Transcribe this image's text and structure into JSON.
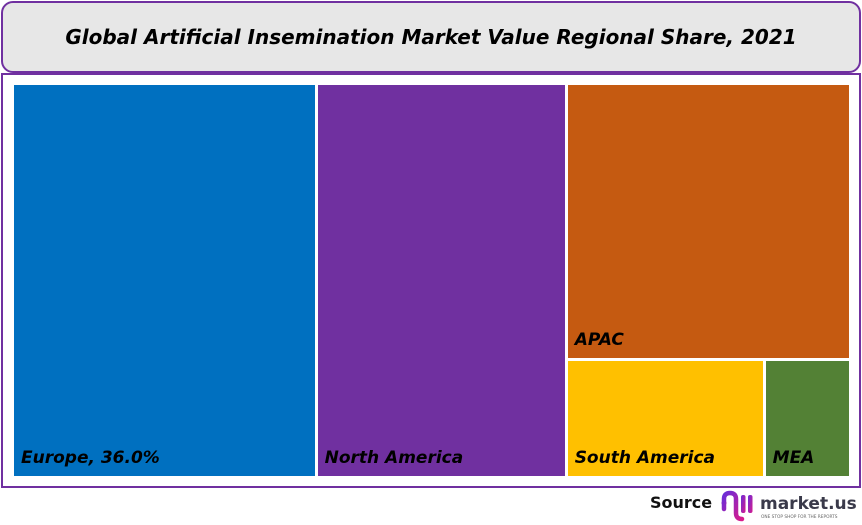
{
  "chart_data": {
    "type": "treemap",
    "title": "Global Artificial Insemination Market Value Regional Share, 2021",
    "unit": "%",
    "items": [
      {
        "name": "Europe",
        "label": "Europe, 36.0%",
        "value": 36.0,
        "color": "#0070c0"
      },
      {
        "name": "North America",
        "label": "North America",
        "value": 29.8,
        "color": "#7030a0"
      },
      {
        "name": "APAC",
        "label": "APAC",
        "value": 23.7,
        "color": "#c55a11"
      },
      {
        "name": "South America",
        "label": "South America",
        "value": 7.0,
        "color": "#ffc000"
      },
      {
        "name": "MEA",
        "label": "MEA",
        "value": 3.0,
        "color": "#538135"
      }
    ]
  },
  "footer": {
    "source_label": "Source",
    "logo_text": "market.us",
    "logo_tagline": "ONE STOP SHOP FOR THE REPORTS"
  },
  "colors": {
    "border": "#7030a0",
    "title_bg": "#e7e7e7"
  }
}
